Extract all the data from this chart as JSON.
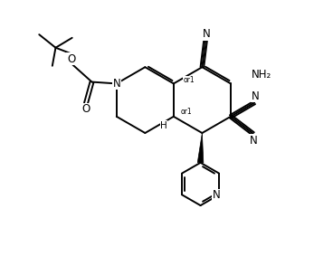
{
  "background_color": "#ffffff",
  "line_color": "#000000",
  "line_width": 1.4,
  "font_size": 8.5,
  "fig_width": 3.68,
  "fig_height": 2.94,
  "xlim": [
    0,
    10
  ],
  "ylim": [
    0,
    8
  ]
}
